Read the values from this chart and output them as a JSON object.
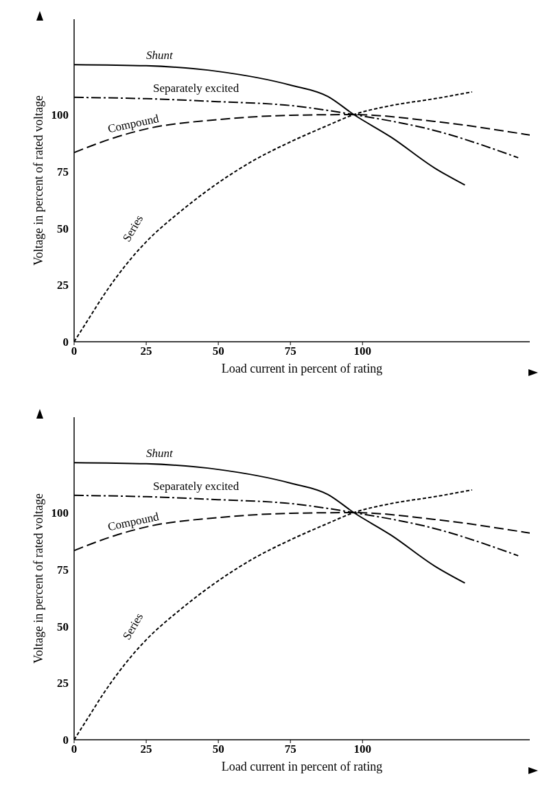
{
  "chart_data": [
    {
      "type": "line",
      "xlabel": "Load current in percent of rating",
      "ylabel": "Voltage in percent of rated voltage",
      "xlim": [
        0,
        158
      ],
      "ylim": [
        0,
        142
      ],
      "xticks": [
        0,
        25,
        50,
        75,
        100
      ],
      "yticks": [
        0,
        25,
        50,
        75,
        100
      ],
      "grid": false,
      "legend": false,
      "series": [
        {
          "name": "Shunt",
          "color": "#000000",
          "line_style": "solid",
          "x": [
            0,
            25,
            50,
            75,
            88,
            97,
            110,
            125,
            135.5
          ],
          "values": [
            122,
            121.5,
            119,
            113,
            108,
            100,
            90,
            76.5,
            69
          ]
        },
        {
          "name": "Separately excited",
          "color": "#000000",
          "line_style": "dashdot",
          "x": [
            0,
            25,
            50,
            75,
            97,
            125,
            154
          ],
          "values": [
            107.6,
            107,
            105.7,
            104,
            100,
            93,
            81
          ]
        },
        {
          "name": "Compound",
          "color": "#000000",
          "line_style": "dashed",
          "x": [
            0,
            12,
            25,
            50,
            75,
            97,
            125,
            158
          ],
          "values": [
            83.3,
            89,
            93.7,
            97.8,
            99.7,
            100,
            97,
            91
          ]
        },
        {
          "name": "Series",
          "color": "#000000",
          "line_style": "dotted",
          "x": [
            0,
            5,
            10,
            20,
            25,
            37.5,
            50,
            62.5,
            75,
            87.5,
            97,
            110,
            125,
            138
          ],
          "values": [
            0,
            10,
            20,
            37,
            44,
            58,
            70,
            80,
            88,
            95,
            100,
            104,
            107,
            110
          ]
        }
      ]
    },
    {
      "type": "line",
      "xlabel": "Load current in percent of rating",
      "ylabel": "Voltage in percent of rated voltage",
      "xlim": [
        0,
        158
      ],
      "ylim": [
        0,
        142
      ],
      "xticks": [
        0,
        25,
        50,
        75,
        100
      ],
      "yticks": [
        0,
        25,
        50,
        75,
        100
      ],
      "grid": false,
      "legend": false,
      "series": [
        {
          "name": "Shunt",
          "color": "#000000",
          "line_style": "solid",
          "x": [
            0,
            25,
            50,
            75,
            88,
            97,
            110,
            125,
            135.5
          ],
          "values": [
            122,
            121.5,
            119,
            113,
            108,
            100,
            90,
            76.5,
            69
          ]
        },
        {
          "name": "Separately excited",
          "color": "#000000",
          "line_style": "dashdot",
          "x": [
            0,
            25,
            50,
            75,
            97,
            125,
            154
          ],
          "values": [
            107.6,
            107,
            105.7,
            104,
            100,
            93,
            81
          ]
        },
        {
          "name": "Compound",
          "color": "#000000",
          "line_style": "dashed",
          "x": [
            0,
            12,
            25,
            50,
            75,
            97,
            125,
            158
          ],
          "values": [
            83.3,
            89,
            93.7,
            97.8,
            99.7,
            100,
            97,
            91
          ]
        },
        {
          "name": "Series",
          "color": "#000000",
          "line_style": "dotted",
          "x": [
            0,
            5,
            10,
            20,
            25,
            37.5,
            50,
            62.5,
            75,
            87.5,
            97,
            110,
            125,
            138
          ],
          "values": [
            0,
            10,
            20,
            37,
            44,
            58,
            70,
            80,
            88,
            95,
            100,
            104,
            107,
            110
          ]
        }
      ]
    }
  ]
}
